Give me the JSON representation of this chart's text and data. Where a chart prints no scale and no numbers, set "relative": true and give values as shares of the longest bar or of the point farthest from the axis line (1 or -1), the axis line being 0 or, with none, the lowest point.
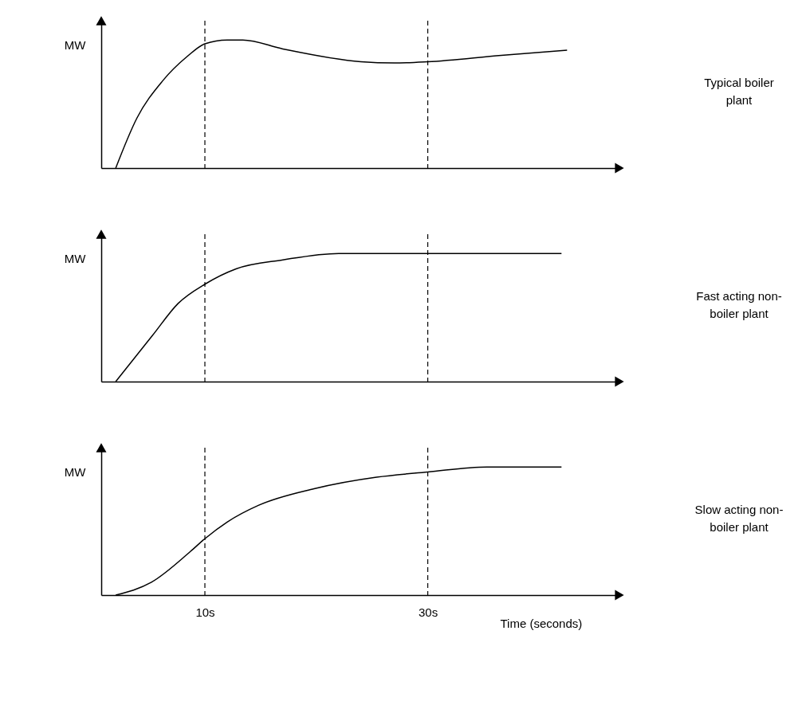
{
  "chart_data": [
    {
      "type": "line",
      "relative": true,
      "ylabel": "MW",
      "xlim": [
        0.7,
        47.2
      ],
      "tick_labels": false,
      "x": [
        2.0,
        3.9,
        6.2,
        8.4,
        10,
        12.0,
        13.4,
        17.0,
        24.0,
        27.0,
        30,
        36.6,
        42.5
      ],
      "series": [
        {
          "color": "#000000",
          "values": [
            0,
            0.39,
            0.68,
            0.87,
            0.97,
            1.0,
            1.0,
            0.93,
            0.83,
            0.82,
            0.83,
            0.88,
            0.92
          ]
        }
      ],
      "ref_lines": [
        {
          "axis": "x",
          "value": 10,
          "color": "#000000",
          "line_style": "dashed"
        },
        {
          "axis": "x",
          "value": 30,
          "color": "#000000",
          "line_style": "dashed"
        }
      ],
      "annotations": [
        "Typical boiler plant"
      ]
    },
    {
      "type": "line",
      "relative": true,
      "ylabel": "MW",
      "xlim": [
        0.7,
        47.2
      ],
      "tick_labels": false,
      "x": [
        2.0,
        5.3,
        7.6,
        10,
        12.8,
        17.0,
        22.0,
        42.0
      ],
      "series": [
        {
          "color": "#000000",
          "values": [
            0,
            0.36,
            0.61,
            0.76,
            0.88,
            0.95,
            1.0,
            1.0
          ]
        }
      ],
      "ref_lines": [
        {
          "axis": "x",
          "value": 10,
          "color": "#000000",
          "line_style": "dashed"
        },
        {
          "axis": "x",
          "value": 30,
          "color": "#000000",
          "line_style": "dashed"
        }
      ],
      "annotations": [
        "Fast acting non-boiler plant"
      ]
    },
    {
      "type": "line",
      "relative": true,
      "ylabel": "MW",
      "xlabel": "Time (seconds)",
      "xlim": [
        0.7,
        47.2
      ],
      "tick_labels": "x",
      "xticks": [
        {
          "value": 10,
          "label": "10s"
        },
        {
          "value": 30,
          "label": "30s"
        }
      ],
      "x": [
        2.0,
        5.2,
        8.7,
        10,
        12.0,
        14.8,
        19.8,
        25.4,
        30,
        35.3,
        42.0
      ],
      "series": [
        {
          "color": "#000000",
          "values": [
            0,
            0.1,
            0.34,
            0.44,
            0.57,
            0.7,
            0.83,
            0.92,
            0.96,
            1.0,
            1.0
          ]
        }
      ],
      "ref_lines": [
        {
          "axis": "x",
          "value": 10,
          "color": "#000000",
          "line_style": "dashed"
        },
        {
          "axis": "x",
          "value": 30,
          "color": "#000000",
          "line_style": "dashed"
        }
      ],
      "annotations": [
        "Slow acting non-boiler plant"
      ]
    }
  ]
}
